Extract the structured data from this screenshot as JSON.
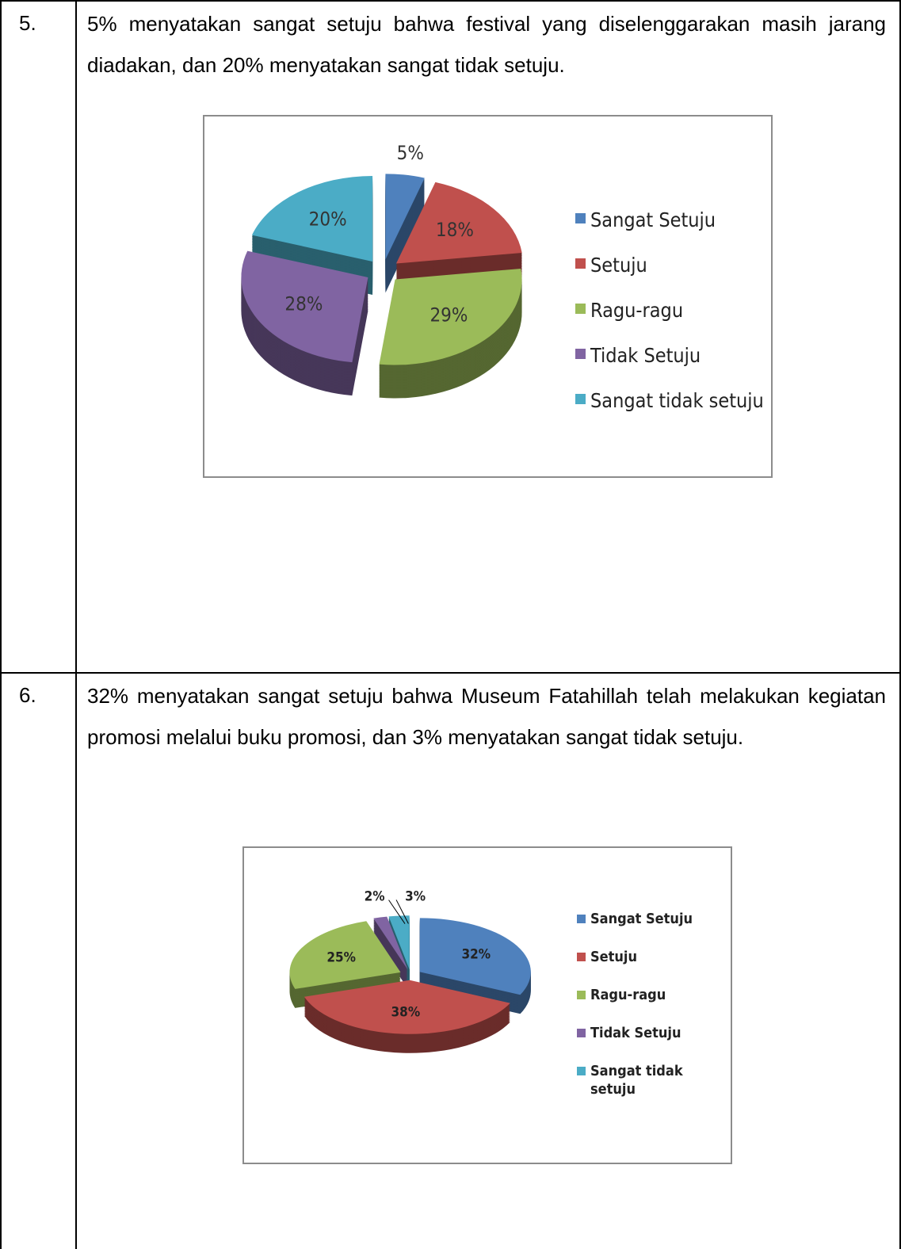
{
  "rows": [
    {
      "number": "5.",
      "text": "5% menyatakan sangat setuju bahwa festival yang diselenggarakan masih jarang diadakan, dan 20% menyatakan sangat tidak setuju.",
      "chart": {
        "type": "pie",
        "categories": [
          "Sangat Setuju",
          "Setuju",
          "Ragu-ragu",
          "Tidak Setuju",
          "Sangat tidak setuju"
        ],
        "values": [
          5,
          18,
          29,
          28,
          20
        ],
        "value_labels": [
          "5%",
          "18%",
          "29%",
          "28%",
          "20%"
        ],
        "colors": [
          "#4f81bd",
          "#c0504d",
          "#9bbb59",
          "#8064a2",
          "#4bacc6"
        ]
      }
    },
    {
      "number": "6.",
      "text": "32% menyatakan sangat setuju bahwa Museum Fatahillah telah melakukan kegiatan promosi melalui buku promosi, dan 3% menyatakan sangat tidak setuju.",
      "chart": {
        "type": "pie",
        "categories": [
          "Sangat Setuju",
          "Setuju",
          "Ragu-ragu",
          "Tidak Setuju",
          "Sangat tidak setuju"
        ],
        "values": [
          32,
          38,
          25,
          2,
          3
        ],
        "value_labels": [
          "32%",
          "38%",
          "25%",
          "2%",
          "3%"
        ],
        "colors": [
          "#4f81bd",
          "#c0504d",
          "#9bbb59",
          "#8064a2",
          "#4bacc6"
        ]
      }
    }
  ]
}
